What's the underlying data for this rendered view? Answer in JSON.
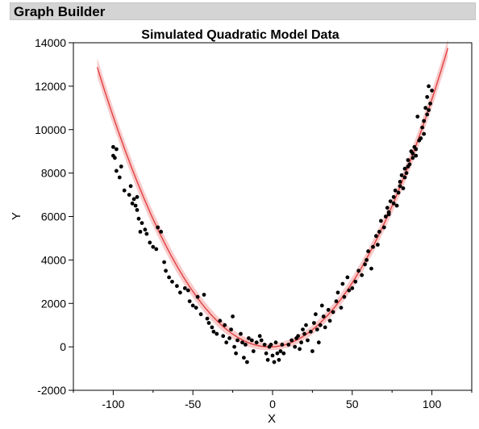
{
  "window": {
    "title": "Graph Builder"
  },
  "chart_data": {
    "type": "scatter",
    "title": "Simulated Quadratic Model Data",
    "xlabel": "X",
    "ylabel": "Y",
    "xlim": [
      -125,
      125
    ],
    "ylim": [
      -2000,
      14000
    ],
    "xticks": [
      -100,
      -50,
      0,
      50,
      100
    ],
    "yticks": [
      -2000,
      0,
      2000,
      4000,
      6000,
      8000,
      10000,
      12000,
      14000
    ],
    "grid": false,
    "point_color": "#000000",
    "fit_color": "#e04040",
    "band_color": "#f4a0a0",
    "fit": {
      "type": "quadratic",
      "a": 1.1,
      "b": 4,
      "c": 0,
      "x_range": [
        -110,
        110
      ],
      "band": 150
    },
    "points": [
      [
        -100,
        9200
      ],
      [
        -99,
        8700
      ],
      [
        -98,
        9100
      ],
      [
        -100,
        8800
      ],
      [
        -98,
        8100
      ],
      [
        -96,
        7800
      ],
      [
        -95,
        8300
      ],
      [
        -93,
        7200
      ],
      [
        -90,
        7000
      ],
      [
        -89,
        7400
      ],
      [
        -88,
        6600
      ],
      [
        -87,
        6800
      ],
      [
        -86,
        6500
      ],
      [
        -85,
        6900
      ],
      [
        -85,
        6300
      ],
      [
        -84,
        5900
      ],
      [
        -83,
        5300
      ],
      [
        -82,
        5700
      ],
      [
        -80,
        5400
      ],
      [
        -79,
        5200
      ],
      [
        -77,
        4800
      ],
      [
        -75,
        4600
      ],
      [
        -73,
        4500
      ],
      [
        -72,
        5500
      ],
      [
        -70,
        5300
      ],
      [
        -68,
        3900
      ],
      [
        -67,
        3500
      ],
      [
        -65,
        3200
      ],
      [
        -63,
        3000
      ],
      [
        -60,
        2800
      ],
      [
        -58,
        2500
      ],
      [
        -55,
        2700
      ],
      [
        -53,
        2600
      ],
      [
        -52,
        2100
      ],
      [
        -50,
        1900
      ],
      [
        -48,
        1800
      ],
      [
        -47,
        2300
      ],
      [
        -45,
        1500
      ],
      [
        -43,
        2400
      ],
      [
        -41,
        1300
      ],
      [
        -40,
        1100
      ],
      [
        -38,
        900
      ],
      [
        -37,
        700
      ],
      [
        -35,
        600
      ],
      [
        -33,
        1200
      ],
      [
        -31,
        500
      ],
      [
        -30,
        1000
      ],
      [
        -29,
        200
      ],
      [
        -27,
        400
      ],
      [
        -26,
        800
      ],
      [
        -25,
        1400
      ],
      [
        -24,
        0
      ],
      [
        -23,
        -300
      ],
      [
        -22,
        300
      ],
      [
        -20,
        600
      ],
      [
        -19,
        200
      ],
      [
        -18,
        -500
      ],
      [
        -17,
        100
      ],
      [
        -16,
        -700
      ],
      [
        -15,
        400
      ],
      [
        -13,
        300
      ],
      [
        -12,
        -200
      ],
      [
        -10,
        200
      ],
      [
        -8,
        500
      ],
      [
        -7,
        300
      ],
      [
        -5,
        100
      ],
      [
        -4,
        -300
      ],
      [
        -3,
        -600
      ],
      [
        -2,
        0
      ],
      [
        -1,
        100
      ],
      [
        0,
        -400
      ],
      [
        1,
        -700
      ],
      [
        2,
        200
      ],
      [
        3,
        -300
      ],
      [
        4,
        -600
      ],
      [
        5,
        -200
      ],
      [
        6,
        100
      ],
      [
        7,
        -300
      ],
      [
        10,
        100
      ],
      [
        12,
        300
      ],
      [
        14,
        0
      ],
      [
        15,
        400
      ],
      [
        16,
        500
      ],
      [
        17,
        -100
      ],
      [
        18,
        200
      ],
      [
        19,
        800
      ],
      [
        20,
        600
      ],
      [
        21,
        1000
      ],
      [
        22,
        300
      ],
      [
        24,
        700
      ],
      [
        25,
        -200
      ],
      [
        26,
        1100
      ],
      [
        27,
        1500
      ],
      [
        28,
        800
      ],
      [
        29,
        200
      ],
      [
        30,
        1000
      ],
      [
        31,
        1900
      ],
      [
        32,
        1400
      ],
      [
        33,
        900
      ],
      [
        35,
        1700
      ],
      [
        36,
        1200
      ],
      [
        38,
        1600
      ],
      [
        40,
        2100
      ],
      [
        41,
        2500
      ],
      [
        43,
        1800
      ],
      [
        44,
        2900
      ],
      [
        45,
        2300
      ],
      [
        47,
        3200
      ],
      [
        48,
        2600
      ],
      [
        50,
        2700
      ],
      [
        52,
        3000
      ],
      [
        54,
        3500
      ],
      [
        56,
        3300
      ],
      [
        58,
        3800
      ],
      [
        59,
        4000
      ],
      [
        60,
        4400
      ],
      [
        62,
        3600
      ],
      [
        63,
        4600
      ],
      [
        65,
        5100
      ],
      [
        66,
        4700
      ],
      [
        67,
        5300
      ],
      [
        68,
        5800
      ],
      [
        70,
        5500
      ],
      [
        71,
        6000
      ],
      [
        72,
        6400
      ],
      [
        73,
        6200
      ],
      [
        74,
        6700
      ],
      [
        76,
        6900
      ],
      [
        77,
        7200
      ],
      [
        78,
        6500
      ],
      [
        79,
        7100
      ],
      [
        80,
        7600
      ],
      [
        81,
        7900
      ],
      [
        82,
        7300
      ],
      [
        83,
        8200
      ],
      [
        84,
        8000
      ],
      [
        85,
        8600
      ],
      [
        86,
        8400
      ],
      [
        87,
        9000
      ],
      [
        88,
        8900
      ],
      [
        89,
        9200
      ],
      [
        90,
        8800
      ],
      [
        91,
        10600
      ],
      [
        92,
        9500
      ],
      [
        94,
        10100
      ],
      [
        95,
        9800
      ],
      [
        96,
        11000
      ],
      [
        97,
        11500
      ],
      [
        98,
        12000
      ],
      [
        99,
        11200
      ],
      [
        100,
        11800
      ],
      [
        98,
        10900
      ],
      [
        97,
        10700
      ],
      [
        95,
        10400
      ],
      [
        93,
        9600
      ],
      [
        90,
        9100
      ],
      [
        88,
        8700
      ],
      [
        85,
        8300
      ],
      [
        83,
        7800
      ],
      [
        80,
        7400
      ],
      [
        76,
        6600
      ],
      [
        73,
        6100
      ]
    ]
  }
}
